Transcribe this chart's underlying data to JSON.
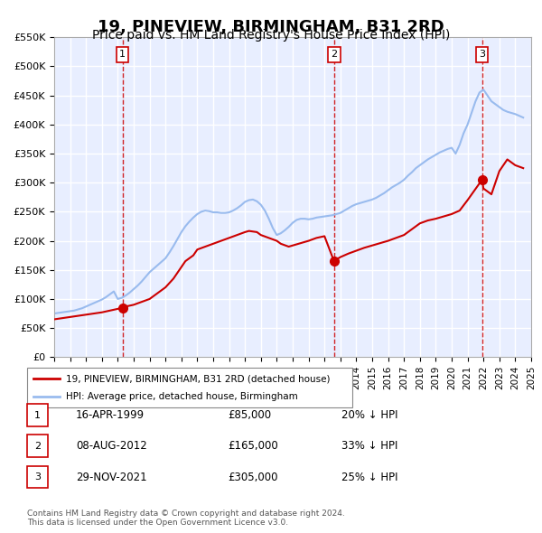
{
  "title": "19, PINEVIEW, BIRMINGHAM, B31 2RD",
  "subtitle": "Price paid vs. HM Land Registry's House Price Index (HPI)",
  "title_fontsize": 13,
  "subtitle_fontsize": 10,
  "background_color": "#f0f4ff",
  "plot_bg_color": "#e8eeff",
  "ylabel": "",
  "ylim": [
    0,
    550000
  ],
  "yticks": [
    0,
    50000,
    100000,
    150000,
    200000,
    250000,
    300000,
    350000,
    400000,
    450000,
    500000,
    550000
  ],
  "ytick_labels": [
    "£0",
    "£50K",
    "£100K",
    "£150K",
    "£200K",
    "£250K",
    "£300K",
    "£350K",
    "£400K",
    "£450K",
    "£500K",
    "£550K"
  ],
  "xlim_start": 1995,
  "xlim_end": 2025,
  "xtick_years": [
    1995,
    1996,
    1997,
    1998,
    1999,
    2000,
    2001,
    2002,
    2003,
    2004,
    2005,
    2006,
    2007,
    2008,
    2009,
    2010,
    2011,
    2012,
    2013,
    2014,
    2015,
    2016,
    2017,
    2018,
    2019,
    2020,
    2021,
    2022,
    2023,
    2024,
    2025
  ],
  "red_line_color": "#cc0000",
  "blue_line_color": "#99bbee",
  "dashed_line_color": "#cc0000",
  "grid_color": "#ffffff",
  "sale_points": [
    {
      "year": 1999.29,
      "value": 85000,
      "label": "1"
    },
    {
      "year": 2012.6,
      "value": 165000,
      "label": "2"
    },
    {
      "year": 2021.91,
      "value": 305000,
      "label": "3"
    }
  ],
  "legend_entries": [
    {
      "label": "19, PINEVIEW, BIRMINGHAM, B31 2RD (detached house)",
      "color": "#cc0000",
      "lw": 2
    },
    {
      "label": "HPI: Average price, detached house, Birmingham",
      "color": "#99bbee",
      "lw": 2
    }
  ],
  "table_rows": [
    {
      "num": "1",
      "date": "16-APR-1999",
      "price": "£85,000",
      "pct": "20% ↓ HPI"
    },
    {
      "num": "2",
      "date": "08-AUG-2012",
      "price": "£165,000",
      "pct": "33% ↓ HPI"
    },
    {
      "num": "3",
      "date": "29-NOV-2021",
      "price": "£305,000",
      "pct": "25% ↓ HPI"
    }
  ],
  "footer": "Contains HM Land Registry data © Crown copyright and database right 2024.\nThis data is licensed under the Open Government Licence v3.0.",
  "hpi_data_x": [
    1995.0,
    1995.25,
    1995.5,
    1995.75,
    1996.0,
    1996.25,
    1996.5,
    1996.75,
    1997.0,
    1997.25,
    1997.5,
    1997.75,
    1998.0,
    1998.25,
    1998.5,
    1998.75,
    1999.0,
    1999.25,
    1999.5,
    1999.75,
    2000.0,
    2000.25,
    2000.5,
    2000.75,
    2001.0,
    2001.25,
    2001.5,
    2001.75,
    2002.0,
    2002.25,
    2002.5,
    2002.75,
    2003.0,
    2003.25,
    2003.5,
    2003.75,
    2004.0,
    2004.25,
    2004.5,
    2004.75,
    2005.0,
    2005.25,
    2005.5,
    2005.75,
    2006.0,
    2006.25,
    2006.5,
    2006.75,
    2007.0,
    2007.25,
    2007.5,
    2007.75,
    2008.0,
    2008.25,
    2008.5,
    2008.75,
    2009.0,
    2009.25,
    2009.5,
    2009.75,
    2010.0,
    2010.25,
    2010.5,
    2010.75,
    2011.0,
    2011.25,
    2011.5,
    2011.75,
    2012.0,
    2012.25,
    2012.5,
    2012.75,
    2013.0,
    2013.25,
    2013.5,
    2013.75,
    2014.0,
    2014.25,
    2014.5,
    2014.75,
    2015.0,
    2015.25,
    2015.5,
    2015.75,
    2016.0,
    2016.25,
    2016.5,
    2016.75,
    2017.0,
    2017.25,
    2017.5,
    2017.75,
    2018.0,
    2018.25,
    2018.5,
    2018.75,
    2019.0,
    2019.25,
    2019.5,
    2019.75,
    2020.0,
    2020.25,
    2020.5,
    2020.75,
    2021.0,
    2021.25,
    2021.5,
    2021.75,
    2022.0,
    2022.25,
    2022.5,
    2022.75,
    2023.0,
    2023.25,
    2023.5,
    2023.75,
    2024.0,
    2024.25,
    2024.5
  ],
  "hpi_data_y": [
    75000,
    76000,
    77000,
    78000,
    79000,
    80000,
    82000,
    84000,
    87000,
    90000,
    93000,
    96000,
    99000,
    103000,
    108000,
    113000,
    100000,
    102000,
    106000,
    111000,
    117000,
    123000,
    130000,
    138000,
    146000,
    152000,
    158000,
    164000,
    170000,
    180000,
    191000,
    203000,
    215000,
    225000,
    233000,
    240000,
    246000,
    250000,
    252000,
    251000,
    249000,
    249000,
    248000,
    248000,
    249000,
    252000,
    256000,
    261000,
    267000,
    270000,
    271000,
    268000,
    262000,
    252000,
    238000,
    222000,
    210000,
    213000,
    218000,
    224000,
    231000,
    236000,
    238000,
    238000,
    237000,
    238000,
    240000,
    241000,
    242000,
    243000,
    244000,
    246000,
    248000,
    252000,
    256000,
    260000,
    263000,
    265000,
    267000,
    269000,
    271000,
    274000,
    278000,
    282000,
    287000,
    292000,
    296000,
    300000,
    305000,
    312000,
    318000,
    325000,
    330000,
    335000,
    340000,
    344000,
    348000,
    352000,
    355000,
    358000,
    360000,
    350000,
    365000,
    385000,
    400000,
    420000,
    440000,
    455000,
    460000,
    450000,
    440000,
    435000,
    430000,
    425000,
    422000,
    420000,
    418000,
    415000,
    412000
  ],
  "red_data_x": [
    1995.0,
    1995.5,
    1996.0,
    1996.5,
    1997.0,
    1997.5,
    1998.0,
    1998.5,
    1999.0,
    1999.29,
    1999.5,
    2000.0,
    2000.5,
    2001.0,
    2001.5,
    2002.0,
    2002.5,
    2003.0,
    2003.25,
    2003.75,
    2004.0,
    2004.5,
    2005.0,
    2005.5,
    2006.0,
    2006.5,
    2007.0,
    2007.25,
    2007.75,
    2008.0,
    2008.5,
    2009.0,
    2009.25,
    2009.75,
    2010.0,
    2010.5,
    2011.0,
    2011.5,
    2012.0,
    2012.6,
    2012.75,
    2013.0,
    2013.5,
    2014.0,
    2014.5,
    2015.0,
    2015.5,
    2016.0,
    2016.5,
    2017.0,
    2017.5,
    2018.0,
    2018.5,
    2019.0,
    2019.5,
    2020.0,
    2020.5,
    2021.0,
    2021.91,
    2022.0,
    2022.5,
    2023.0,
    2023.5,
    2024.0,
    2024.5
  ],
  "red_data_y": [
    65000,
    67000,
    69000,
    71000,
    73000,
    75000,
    77000,
    80000,
    83000,
    85000,
    87000,
    90000,
    95000,
    100000,
    110000,
    120000,
    135000,
    155000,
    165000,
    175000,
    185000,
    190000,
    195000,
    200000,
    205000,
    210000,
    215000,
    217000,
    215000,
    210000,
    205000,
    200000,
    195000,
    190000,
    192000,
    196000,
    200000,
    205000,
    208000,
    165000,
    168000,
    172000,
    178000,
    183000,
    188000,
    192000,
    196000,
    200000,
    205000,
    210000,
    220000,
    230000,
    235000,
    238000,
    242000,
    246000,
    252000,
    270000,
    305000,
    290000,
    280000,
    320000,
    340000,
    330000,
    325000
  ]
}
